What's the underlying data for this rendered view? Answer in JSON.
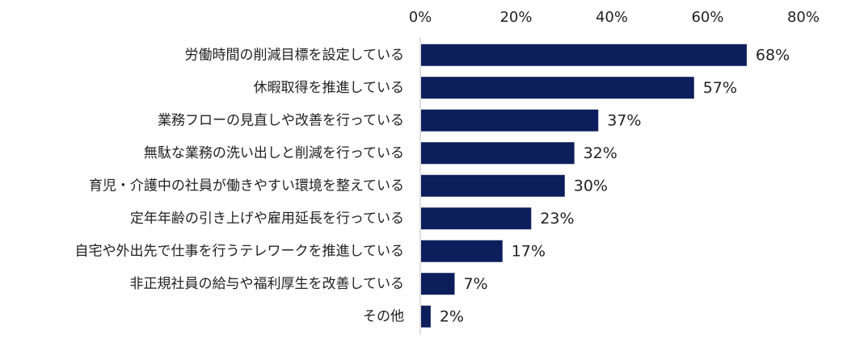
{
  "chart_data": {
    "type": "bar",
    "orientation": "horizontal",
    "title": "",
    "xlabel": "",
    "ylabel": "",
    "xlim": [
      0,
      80
    ],
    "x_ticks": [
      "0%",
      "20%",
      "40%",
      "60%",
      "80%"
    ],
    "x_tick_values": [
      0,
      20,
      40,
      60,
      80
    ],
    "x_axis_position": "top",
    "grid": false,
    "legend": "none",
    "bar_color": "#0d1e5c",
    "categories": [
      "労働時間の削減目標を設定している",
      "休暇取得を推進している",
      "業務フローの見直しや改善を行っている",
      "無駄な業務の洗い出しと削減を行っている",
      "育児・介護中の社員が働きやすい環境を整えている",
      "定年年齢の引き上げや雇用延長を行っている",
      "自宅や外出先で仕事を行うテレワークを推進している",
      "非正規社員の給与や福利厚生を改善している",
      "その他"
    ],
    "values": [
      68,
      57,
      37,
      32,
      30,
      23,
      17,
      7,
      2
    ],
    "value_labels": [
      "68%",
      "57%",
      "37%",
      "32%",
      "30%",
      "23%",
      "17%",
      "7%",
      "2%"
    ]
  }
}
